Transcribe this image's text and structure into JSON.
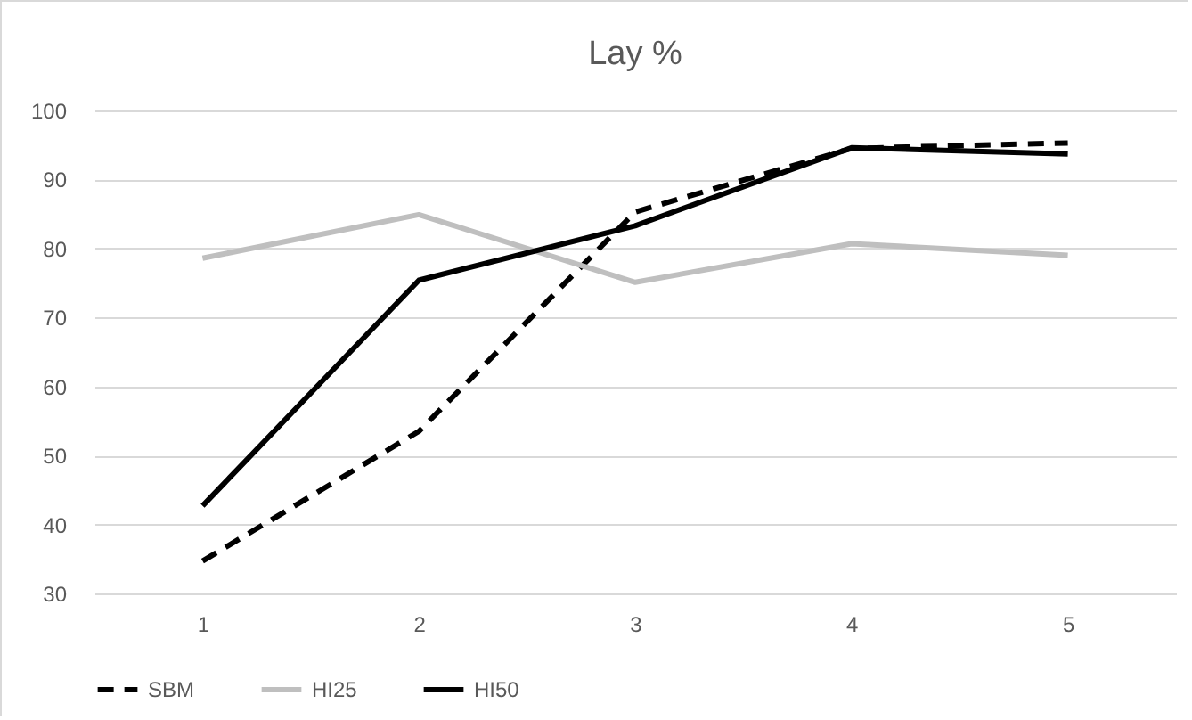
{
  "chart_data": {
    "type": "line",
    "title": "Lay %",
    "categories": [
      "1",
      "2",
      "3",
      "4",
      "5"
    ],
    "series": [
      {
        "name": "SBM",
        "color": "#000000",
        "line_style": "dashed",
        "values": [
          34.7,
          53.5,
          85.3,
          94.5,
          95.3
        ]
      },
      {
        "name": "HI25",
        "color": "#bfbfbf",
        "line_style": "solid",
        "values": [
          78.6,
          84.9,
          75.1,
          80.7,
          79.0
        ]
      },
      {
        "name": "HI50",
        "color": "#000000",
        "line_style": "solid",
        "values": [
          42.7,
          75.4,
          83.3,
          94.6,
          93.7
        ]
      }
    ],
    "ylim": [
      30,
      100
    ],
    "yticks": [
      30,
      40,
      50,
      60,
      70,
      80,
      90,
      100
    ],
    "grid": "y",
    "legend": "bottom",
    "marker": "none"
  }
}
